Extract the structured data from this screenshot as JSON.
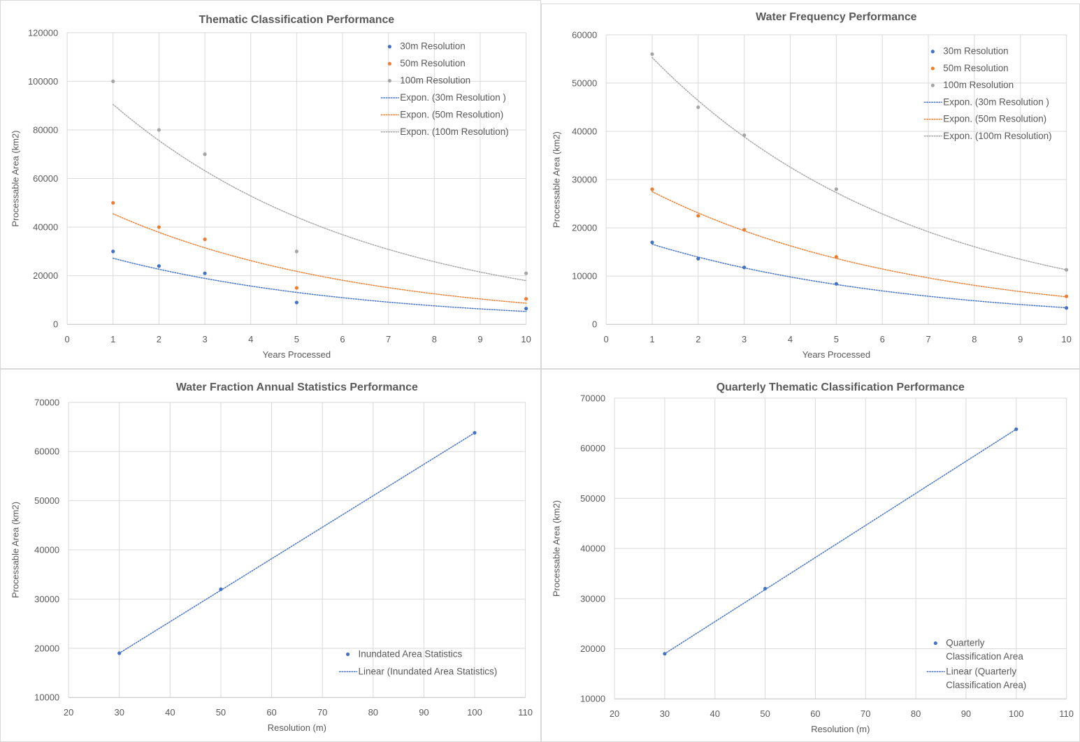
{
  "colors": {
    "series_30m": "#4472C4",
    "series_50m": "#ED7D31",
    "series_100m": "#A5A5A5",
    "grid": "#D9D9D9",
    "text": "#595959",
    "axis": "#BFBFBF"
  },
  "chart_data": [
    {
      "type": "scatter",
      "title": "Thematic Classification Performance",
      "xlabel": "Years Processed",
      "ylabel": "Processable Area (km2)",
      "xlim": [
        0,
        10
      ],
      "ylim": [
        0,
        120000
      ],
      "xticks": [
        0,
        1,
        2,
        3,
        4,
        5,
        6,
        7,
        8,
        9,
        10
      ],
      "yticks": [
        0,
        20000,
        40000,
        60000,
        80000,
        100000,
        120000
      ],
      "grid": true,
      "legend_position": "top-right",
      "series": [
        {
          "name": "30m Resolution",
          "color": "#4472C4",
          "x": [
            1,
            2,
            3,
            5,
            10
          ],
          "values": [
            30000,
            24000,
            21000,
            9000,
            6500
          ]
        },
        {
          "name": "50m Resolution",
          "color": "#ED7D31",
          "x": [
            1,
            2,
            3,
            5,
            10
          ],
          "values": [
            50000,
            40000,
            35000,
            15000,
            10500
          ]
        },
        {
          "name": "100m Resolution",
          "color": "#A5A5A5",
          "x": [
            1,
            2,
            3,
            5,
            10
          ],
          "values": [
            100000,
            80000,
            70000,
            30000,
            21000
          ]
        }
      ],
      "trendlines": [
        {
          "name": "Expon. (30m Resolution )",
          "color": "#4472C4",
          "kind": "exponential",
          "x": [
            1,
            10
          ],
          "values": [
            27200,
            5300
          ]
        },
        {
          "name": "Expon. (50m Resolution)",
          "color": "#ED7D31",
          "kind": "exponential",
          "x": [
            1,
            10
          ],
          "values": [
            45500,
            8700
          ]
        },
        {
          "name": "Expon. (100m Resolution)",
          "color": "#A5A5A5",
          "kind": "exponential",
          "x": [
            1,
            10
          ],
          "values": [
            90500,
            18000
          ]
        }
      ]
    },
    {
      "type": "scatter",
      "title": "Water Frequency Performance",
      "xlabel": "Years Processed",
      "ylabel": "Processable Area (km2)",
      "xlim": [
        0,
        10
      ],
      "ylim": [
        0,
        60000
      ],
      "xticks": [
        0,
        1,
        2,
        3,
        4,
        5,
        6,
        7,
        8,
        9,
        10
      ],
      "yticks": [
        0,
        10000,
        20000,
        30000,
        40000,
        50000,
        60000
      ],
      "grid": true,
      "legend_position": "top-right",
      "series": [
        {
          "name": "30m Resolution",
          "color": "#4472C4",
          "x": [
            1,
            2,
            3,
            5,
            10
          ],
          "values": [
            17000,
            13600,
            11800,
            8400,
            3400
          ]
        },
        {
          "name": "50m Resolution",
          "color": "#ED7D31",
          "x": [
            1,
            2,
            3,
            5,
            10
          ],
          "values": [
            28000,
            22500,
            19600,
            14000,
            5800
          ]
        },
        {
          "name": "100m Resolution",
          "color": "#A5A5A5",
          "x": [
            1,
            2,
            3,
            5,
            10
          ],
          "values": [
            56000,
            45000,
            39200,
            28000,
            11300
          ]
        }
      ],
      "trendlines": [
        {
          "name": "Expon. (30m Resolution )",
          "color": "#4472C4",
          "kind": "exponential",
          "x": [
            1,
            10
          ],
          "values": [
            16600,
            3450
          ]
        },
        {
          "name": "Expon. (50m Resolution)",
          "color": "#ED7D31",
          "kind": "exponential",
          "x": [
            1,
            10
          ],
          "values": [
            27500,
            5700
          ]
        },
        {
          "name": "Expon. (100m Resolution)",
          "color": "#A5A5A5",
          "kind": "exponential",
          "x": [
            1,
            10
          ],
          "values": [
            55300,
            11300
          ]
        }
      ]
    },
    {
      "type": "scatter",
      "title": "Water Fraction Annual Statistics Performance",
      "xlabel": "Resolution (m)",
      "ylabel": "Processable Area (km2)",
      "xlim": [
        20,
        110
      ],
      "ylim": [
        10000,
        70000
      ],
      "xticks": [
        20,
        30,
        40,
        50,
        60,
        70,
        80,
        90,
        100,
        110
      ],
      "yticks": [
        10000,
        20000,
        30000,
        40000,
        50000,
        60000,
        70000
      ],
      "grid": true,
      "legend_position": "bottom-right",
      "series": [
        {
          "name": "Inundated Area Statistics",
          "color": "#4472C4",
          "x": [
            30,
            50,
            100
          ],
          "values": [
            19000,
            32000,
            63800
          ]
        }
      ],
      "trendlines": [
        {
          "name": "Linear (Inundated Area Statistics)",
          "color": "#4472C4",
          "kind": "linear",
          "x": [
            30,
            100
          ],
          "values": [
            19000,
            63800
          ]
        }
      ]
    },
    {
      "type": "scatter",
      "title": "Quarterly Thematic Classification Performance",
      "xlabel": "Resolution (m)",
      "ylabel": "Processable Area (km2)",
      "xlim": [
        20,
        110
      ],
      "ylim": [
        10000,
        70000
      ],
      "xticks": [
        20,
        30,
        40,
        50,
        60,
        70,
        80,
        90,
        100,
        110
      ],
      "yticks": [
        10000,
        20000,
        30000,
        40000,
        50000,
        60000,
        70000
      ],
      "grid": true,
      "legend_position": "bottom-right",
      "series": [
        {
          "name": "Quarterly Classification Area",
          "color": "#4472C4",
          "x": [
            30,
            50,
            100
          ],
          "values": [
            19000,
            32000,
            63800
          ]
        }
      ],
      "trendlines": [
        {
          "name": "Linear (Quarterly Classification Area)",
          "color": "#4472C4",
          "kind": "linear",
          "x": [
            30,
            100
          ],
          "values": [
            19000,
            63800
          ]
        }
      ]
    }
  ]
}
